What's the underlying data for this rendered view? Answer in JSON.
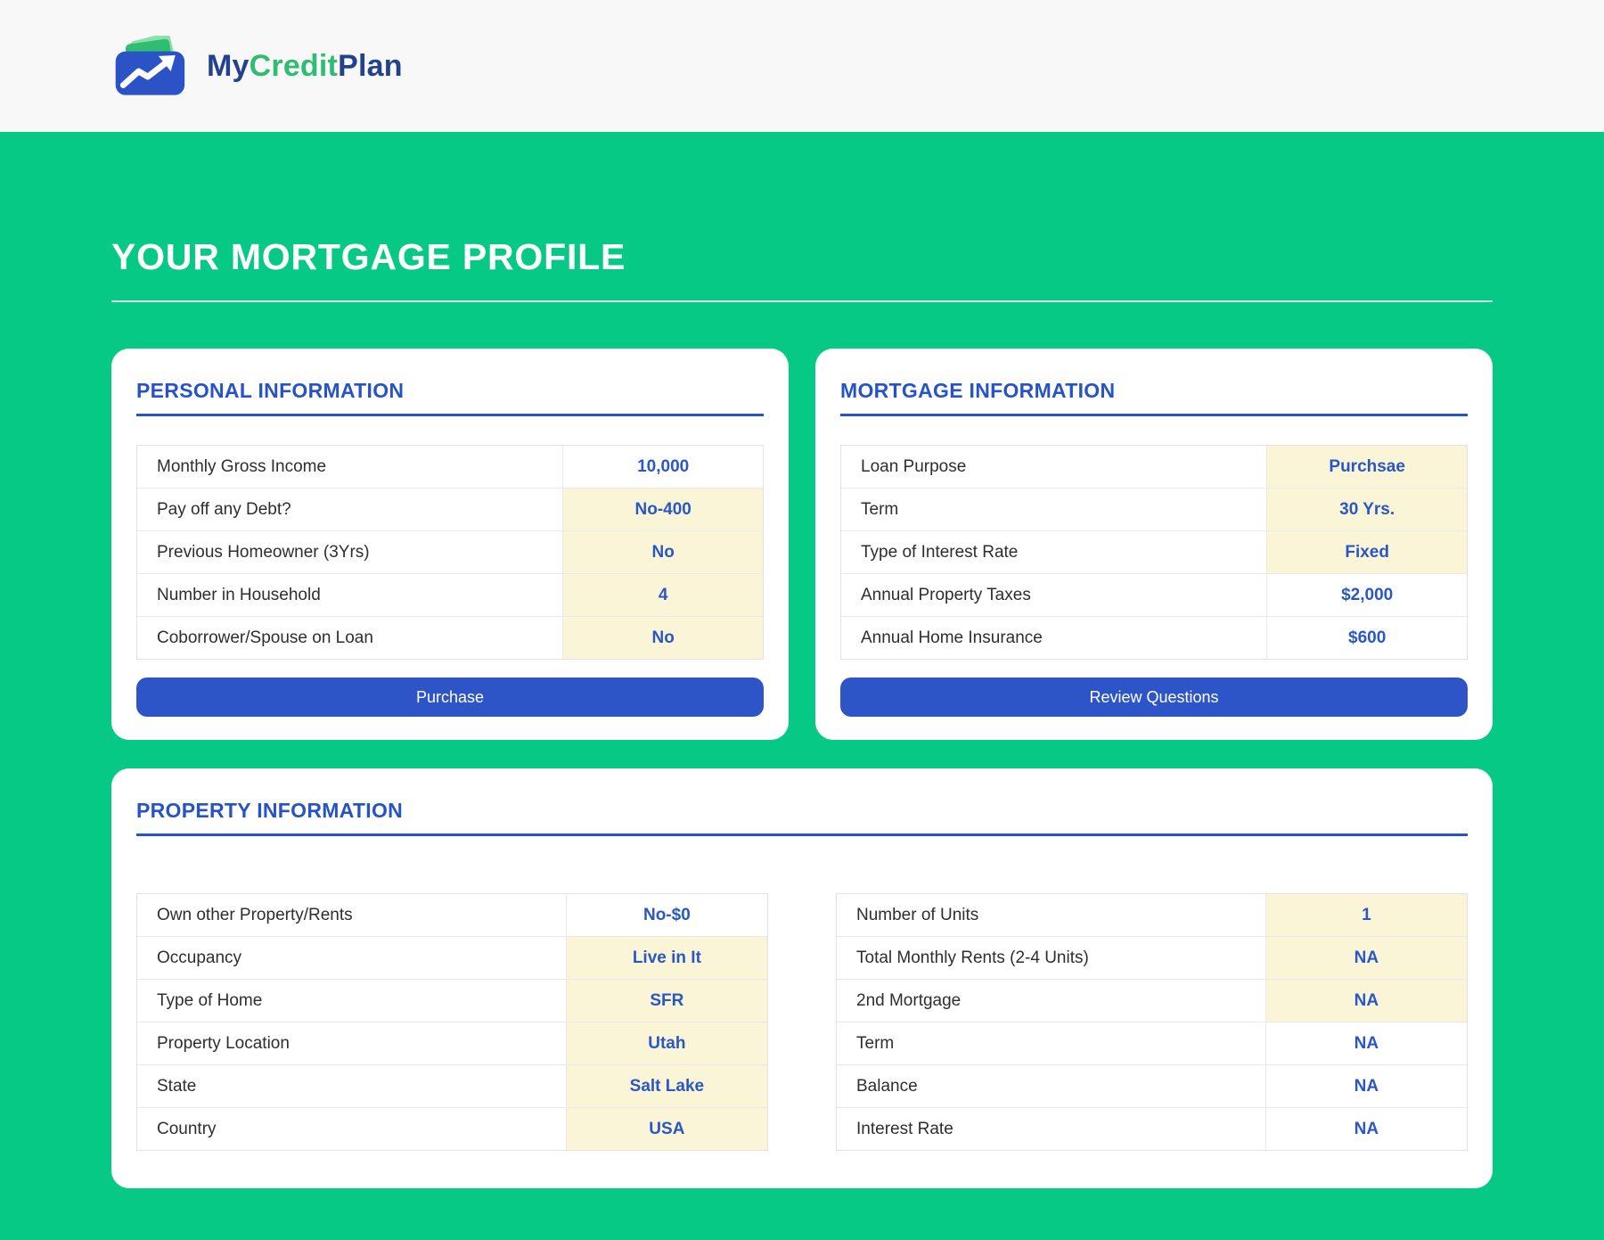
{
  "brand": {
    "my": "My",
    "credit": "Credit",
    "plan": "Plan"
  },
  "page": {
    "title": "YOUR MORTGAGE PROFILE"
  },
  "colors": {
    "background_green": "#06C985",
    "header_bg": "#F9F8F8",
    "accent_blue": "#2653C5",
    "button_blue": "#2D55C7",
    "value_blue": "#2A57C6",
    "highlight_yellow": "#FBF5D8",
    "brand_navy": "#24418C",
    "brand_green": "#2EBD72"
  },
  "cards": {
    "personal": {
      "title": "PERSONAL INFORMATION",
      "button_label": "Purchase",
      "rows": [
        {
          "label": "Monthly Gross Income",
          "value": "10,000",
          "highlight": false
        },
        {
          "label": "Pay off any Debt?",
          "value": "No-400",
          "highlight": true
        },
        {
          "label": "Previous Homeowner (3Yrs)",
          "value": "No",
          "highlight": true
        },
        {
          "label": "Number in Household",
          "value": "4",
          "highlight": true
        },
        {
          "label": "Coborrower/Spouse on Loan",
          "value": "No",
          "highlight": true
        }
      ]
    },
    "mortgage": {
      "title": "MORTGAGE INFORMATION",
      "button_label": "Review Questions",
      "rows": [
        {
          "label": "Loan Purpose",
          "value": "Purchsae",
          "highlight": true
        },
        {
          "label": "Term",
          "value": "30 Yrs.",
          "highlight": true
        },
        {
          "label": "Type of Interest Rate",
          "value": "Fixed",
          "highlight": true
        },
        {
          "label": "Annual Property Taxes",
          "value": "$2,000",
          "highlight": false
        },
        {
          "label": "Annual Home Insurance",
          "value": "$600",
          "highlight": false
        }
      ]
    },
    "property": {
      "title": "PROPERTY INFORMATION",
      "left_rows": [
        {
          "label": "Own other Property/Rents",
          "value": "No-$0",
          "highlight": false
        },
        {
          "label": "Occupancy",
          "value": "Live in It",
          "highlight": true
        },
        {
          "label": "Type of Home",
          "value": "SFR",
          "highlight": true
        },
        {
          "label": "Property Location",
          "value": "Utah",
          "highlight": true
        },
        {
          "label": "State",
          "value": "Salt Lake",
          "highlight": true
        },
        {
          "label": "Country",
          "value": "USA",
          "highlight": true
        }
      ],
      "right_rows": [
        {
          "label": "Number of Units",
          "value": "1",
          "highlight": true
        },
        {
          "label": "Total Monthly Rents (2-4 Units)",
          "value": "NA",
          "highlight": true
        },
        {
          "label": "2nd Mortgage",
          "value": "NA",
          "highlight": true
        },
        {
          "label": "Term",
          "value": "NA",
          "highlight": false
        },
        {
          "label": "Balance",
          "value": "NA",
          "highlight": false
        },
        {
          "label": "Interest Rate",
          "value": "NA",
          "highlight": false
        }
      ]
    }
  }
}
